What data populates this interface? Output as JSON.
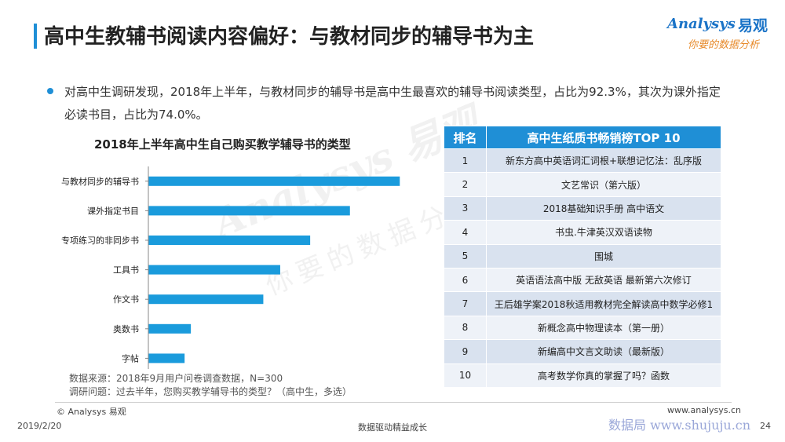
{
  "header": {
    "title": "高中生教辅书阅读内容偏好：与教材同步的辅导书为主"
  },
  "logo": {
    "brand_en": "Analysys",
    "brand_cn": "易观",
    "slogan": "你要的数据分析"
  },
  "bullet": {
    "text": "对高中生调研发现，2018年上半年，与教材同步的辅导书是高中生最喜欢的辅导书阅读类型，占比为92.3%，其次为课外指定必读书目，占比为74.0%。"
  },
  "chart_data": {
    "type": "bar",
    "orientation": "horizontal",
    "title": "2018年上半年高中生自己购买教学辅导书的类型",
    "categories": [
      "与教材同步的辅导书",
      "课外指定书目",
      "专项练习的非同步书",
      "工具书",
      "作文书",
      "奥数书",
      "字帖"
    ],
    "values": [
      92.3,
      74.0,
      59.4,
      48.4,
      42.2,
      15.6,
      13.3
    ],
    "unit": "%",
    "xlim": [
      0,
      100
    ],
    "color": "#1a9bdc",
    "grid": false,
    "data_labels": false
  },
  "source": {
    "line1": "数据来源：2018年9月用户问卷调查数据，N=300",
    "line2": "调研问题：过去半年，您购买教学辅导书的类型？（高中生，多选）"
  },
  "table": {
    "headers": [
      "排名",
      "高中生纸质书畅销榜TOP 10"
    ],
    "rows": [
      {
        "rank": "1",
        "title": "新东方高中英语词汇词根+联想记忆法：乱序版"
      },
      {
        "rank": "2",
        "title": "文艺常识（第六版）"
      },
      {
        "rank": "3",
        "title": "2018基础知识手册 高中语文"
      },
      {
        "rank": "4",
        "title": "书虫.牛津英汉双语读物"
      },
      {
        "rank": "5",
        "title": "围城"
      },
      {
        "rank": "6",
        "title": "英语语法高中版 无敌英语 最新第六次修订"
      },
      {
        "rank": "7",
        "title": "王后雄学案2018秋适用教材完全解读高中数学必修1"
      },
      {
        "rank": "8",
        "title": "新概念高中物理读本（第一册）"
      },
      {
        "rank": "9",
        "title": "新编高中文言文助读（最新版）"
      },
      {
        "rank": "10",
        "title": "高考数学你真的掌握了吗？函数"
      }
    ]
  },
  "watermark": {
    "text": "Analysys 易观",
    "slogan": "你要的数据分析"
  },
  "footer": {
    "copyright": "© Analysys 易观",
    "website": "www.analysys.cn",
    "date": "2019/2/20",
    "slogan": "数据驱动精益成长",
    "shujuju": "数据局  www.shujuju.cn",
    "page": "24"
  },
  "colors": {
    "accent": "#1f8fd6",
    "bar": "#1a9bdc",
    "table_row_odd": "#d9e2ef",
    "table_row_even": "#eef2f8"
  }
}
